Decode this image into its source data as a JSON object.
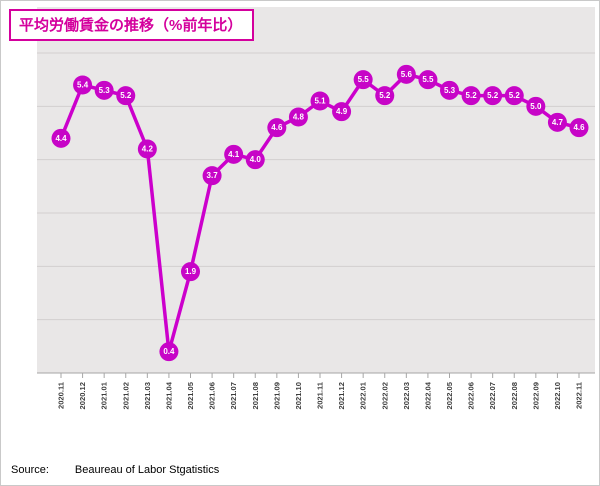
{
  "chart_data": {
    "type": "line",
    "title": "平均労働賃金の推移（%前年比）",
    "categories": [
      "2020.11",
      "2020.12",
      "2021.01",
      "2021.02",
      "2021.03",
      "2021.04",
      "2021.05",
      "2021.06",
      "2021.07",
      "2021.08",
      "2021.09",
      "2021.10",
      "2021.11",
      "2021.12",
      "2022.01",
      "2022.02",
      "2022.03",
      "2022.04",
      "2022.05",
      "2022.06",
      "2022.07",
      "2022.08",
      "2022.09",
      "2022.10",
      "2022.11"
    ],
    "values": [
      4.4,
      5.4,
      5.3,
      5.2,
      4.2,
      0.4,
      1.9,
      3.7,
      4.1,
      4.0,
      4.6,
      4.8,
      5.1,
      4.9,
      5.5,
      5.2,
      5.6,
      5.5,
      5.3,
      5.2,
      5.2,
      5.2,
      5.0,
      4.7,
      4.6
    ],
    "xlabel": "",
    "ylabel": "",
    "ylim": [
      0,
      6
    ],
    "grid": "horizontal",
    "legend": "none",
    "line_color": "#cc00cc",
    "marker_color": "#c705c7",
    "value_label_color": "#ffffff",
    "plot_bg_color": "#e9e7e7",
    "gridline_color": "#d2cfcf",
    "axis_color": "#a6a6a6",
    "title_color": "#d4009d"
  },
  "source": {
    "label": "Source:",
    "text": "Beaureau of Labor Stgatistics"
  }
}
